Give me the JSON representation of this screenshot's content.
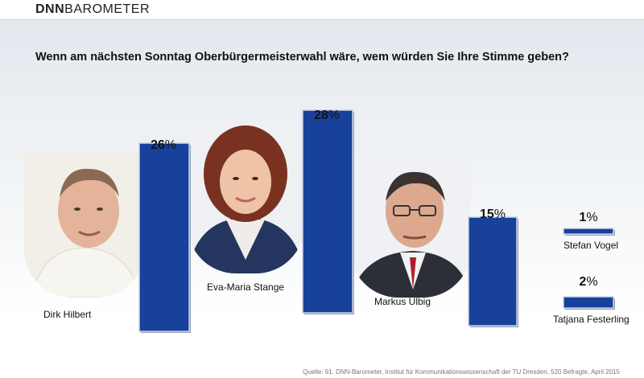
{
  "brand": {
    "part1": "DNN",
    "part2": "BAROMETER"
  },
  "chart_data": {
    "type": "bar",
    "title": "Wenn am nächsten Sonntag Oberbürgermeisterwahl wäre, wem würden Sie Ihre Stimme geben?",
    "categories": [
      "Dirk Hilbert",
      "Eva-Maria Stange",
      "Markus Ulbig",
      "Stefan Vogel",
      "Tatjana Festerling"
    ],
    "values": [
      26,
      28,
      15,
      1,
      2
    ],
    "value_labels": [
      "26",
      "28",
      "15",
      "1",
      "2"
    ],
    "unit": "%",
    "bar_color": "#17419a"
  },
  "photos": [
    {
      "icon": "portrait-dirk-hilbert-icon"
    },
    {
      "icon": "portrait-eva-maria-stange-icon"
    },
    {
      "icon": "portrait-markus-ulbig-icon"
    }
  ],
  "source": "Quelle: 91. DNN-Barometer, Institut für Kommunikationswissenschaft der TU Dresden, 520 Befragte, April 2015"
}
